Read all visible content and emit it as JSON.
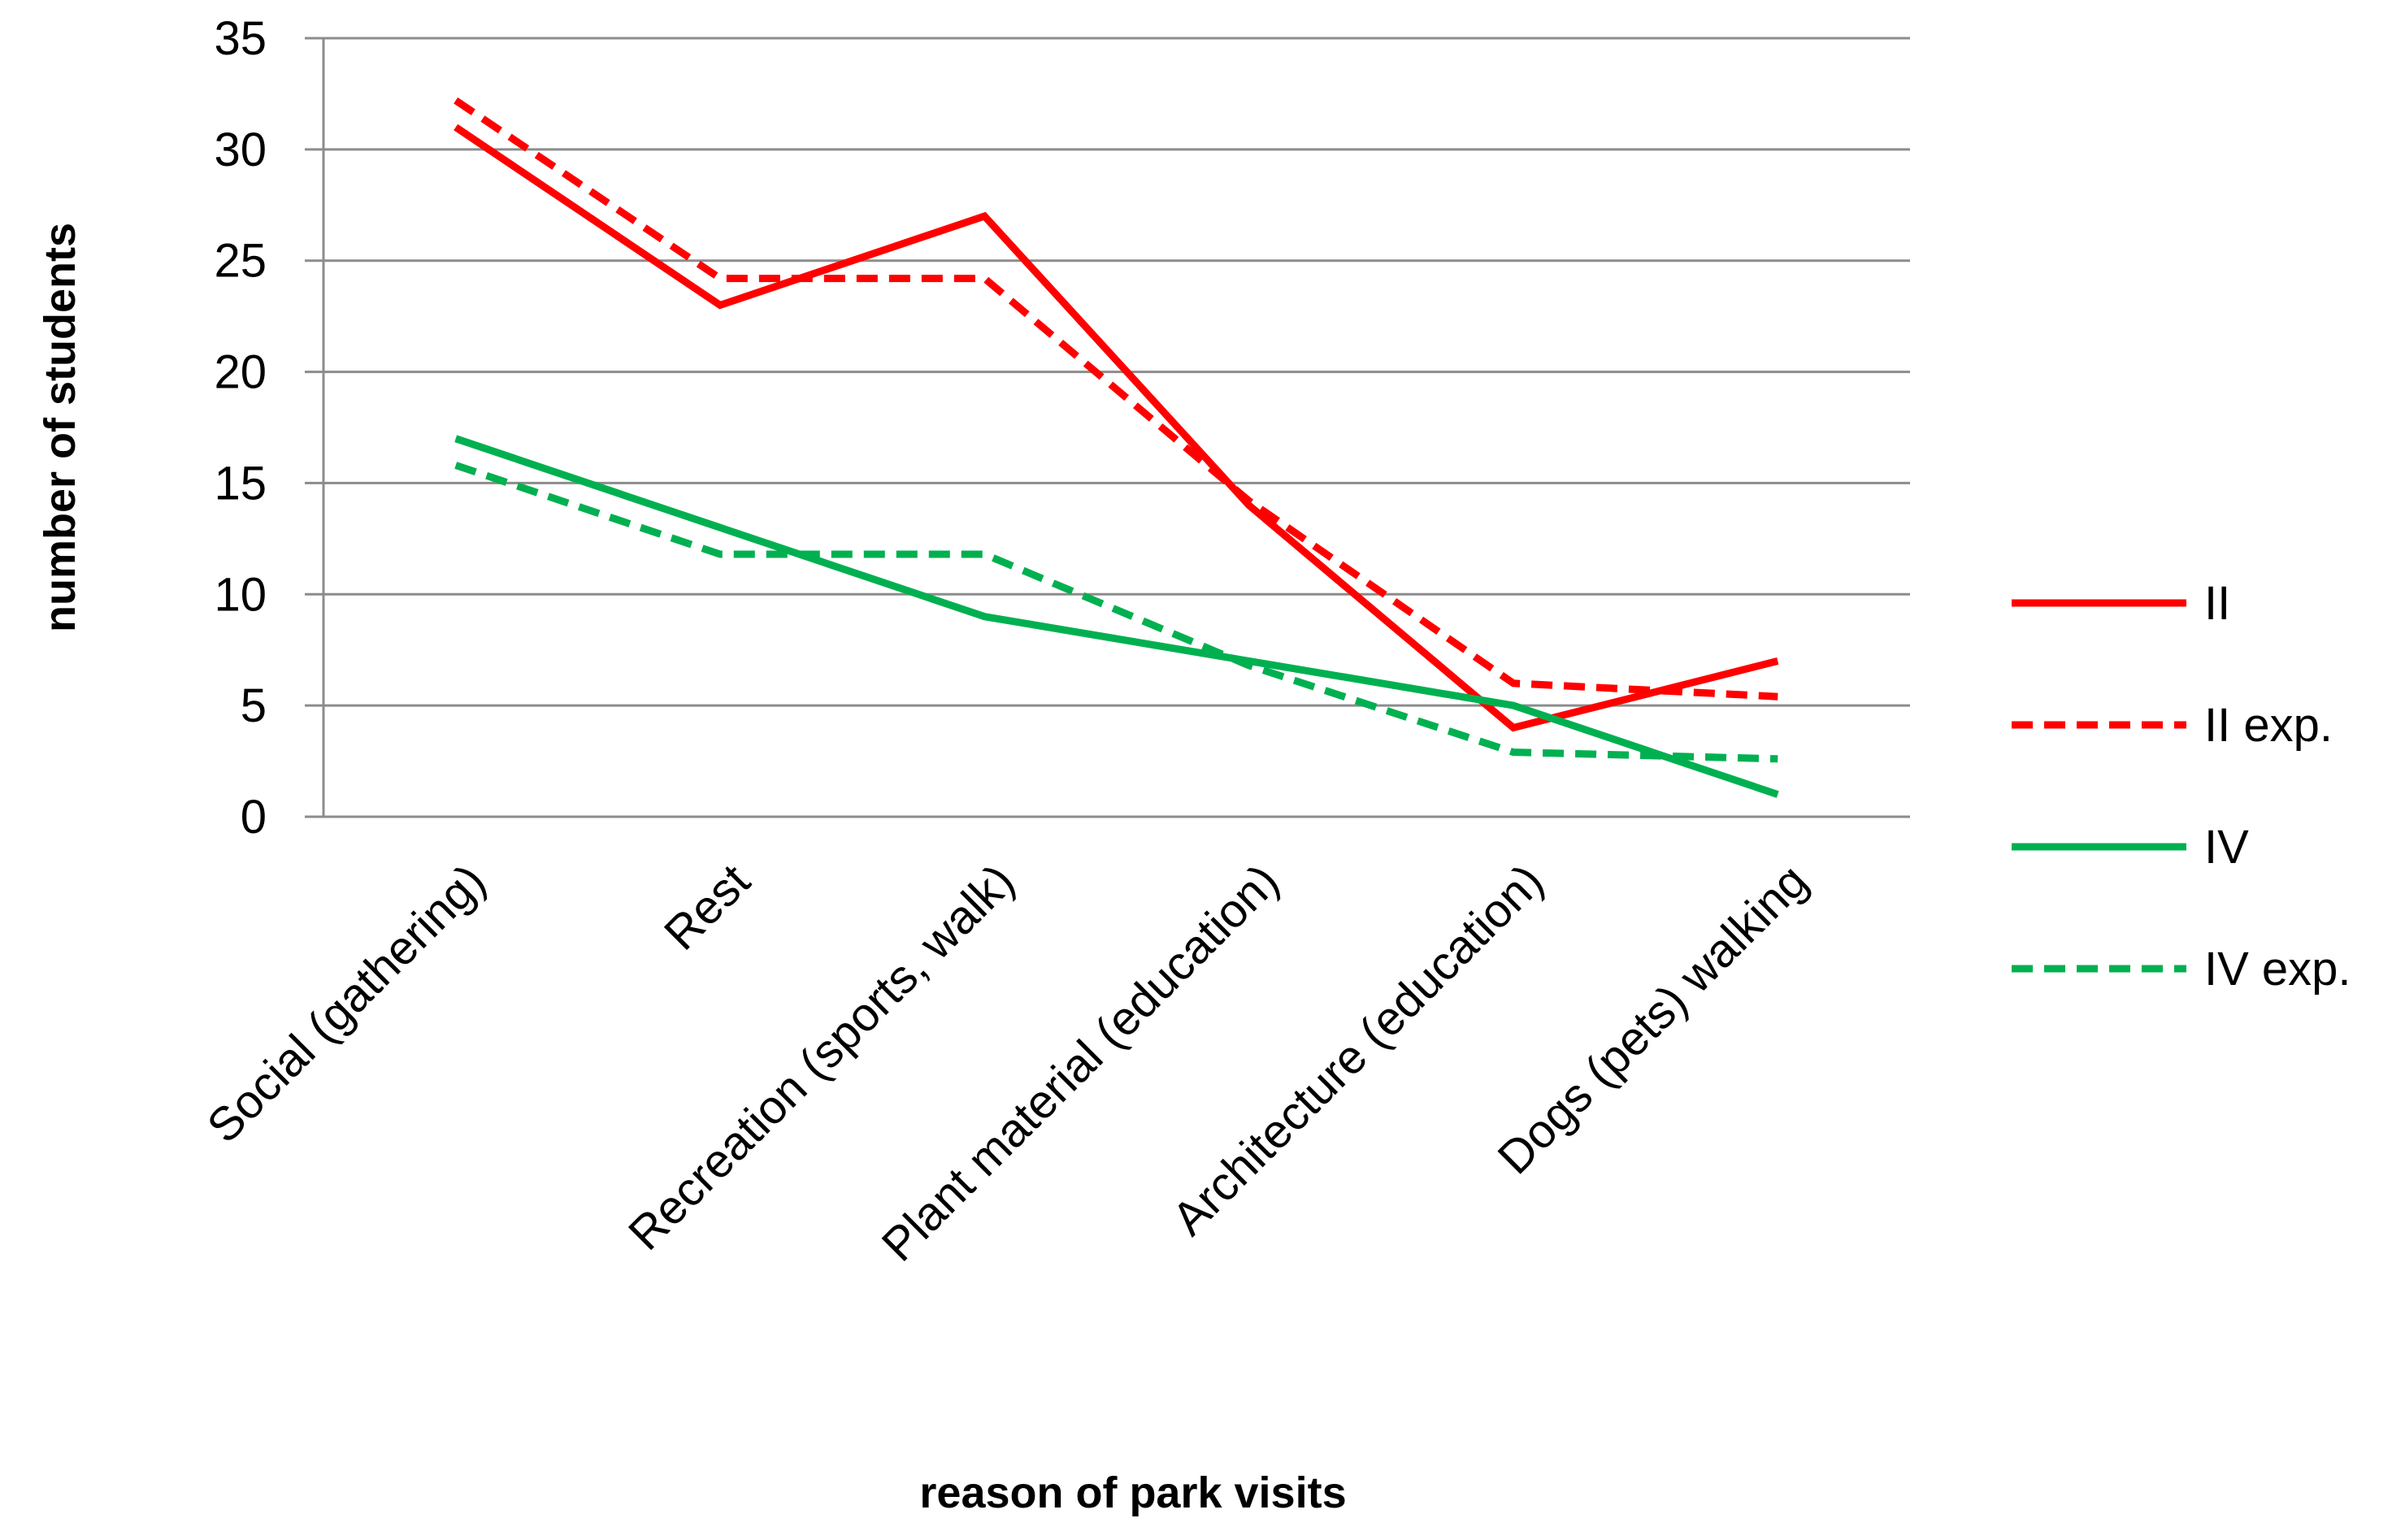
{
  "chart_data": {
    "type": "line",
    "title": "",
    "xlabel": "reason of park visits",
    "ylabel": "number of students",
    "ylim": [
      0,
      35
    ],
    "yticks": [
      0,
      5,
      10,
      15,
      20,
      25,
      30,
      35
    ],
    "grid": true,
    "legend_position": "right",
    "categories": [
      "Social (gathering)",
      "Rest",
      "Recreation (sports, walk)",
      "Plant material (education)",
      "Architecture (education)",
      "Dogs (pets) walking"
    ],
    "series": [
      {
        "name": "II",
        "values": [
          31,
          23,
          27,
          14,
          4,
          7
        ],
        "color": "#ff0000",
        "style": "solid"
      },
      {
        "name": "II exp.",
        "values": [
          32.2,
          24.2,
          24.2,
          14.2,
          6,
          5.4
        ],
        "color": "#ff0000",
        "style": "dashed"
      },
      {
        "name": "IV",
        "values": [
          17,
          13,
          9,
          7,
          5,
          1
        ],
        "color": "#00b050",
        "style": "solid"
      },
      {
        "name": "IV exp.",
        "values": [
          15.8,
          11.8,
          11.8,
          6.8,
          2.9,
          2.6
        ],
        "color": "#00b050",
        "style": "dashed"
      }
    ]
  }
}
